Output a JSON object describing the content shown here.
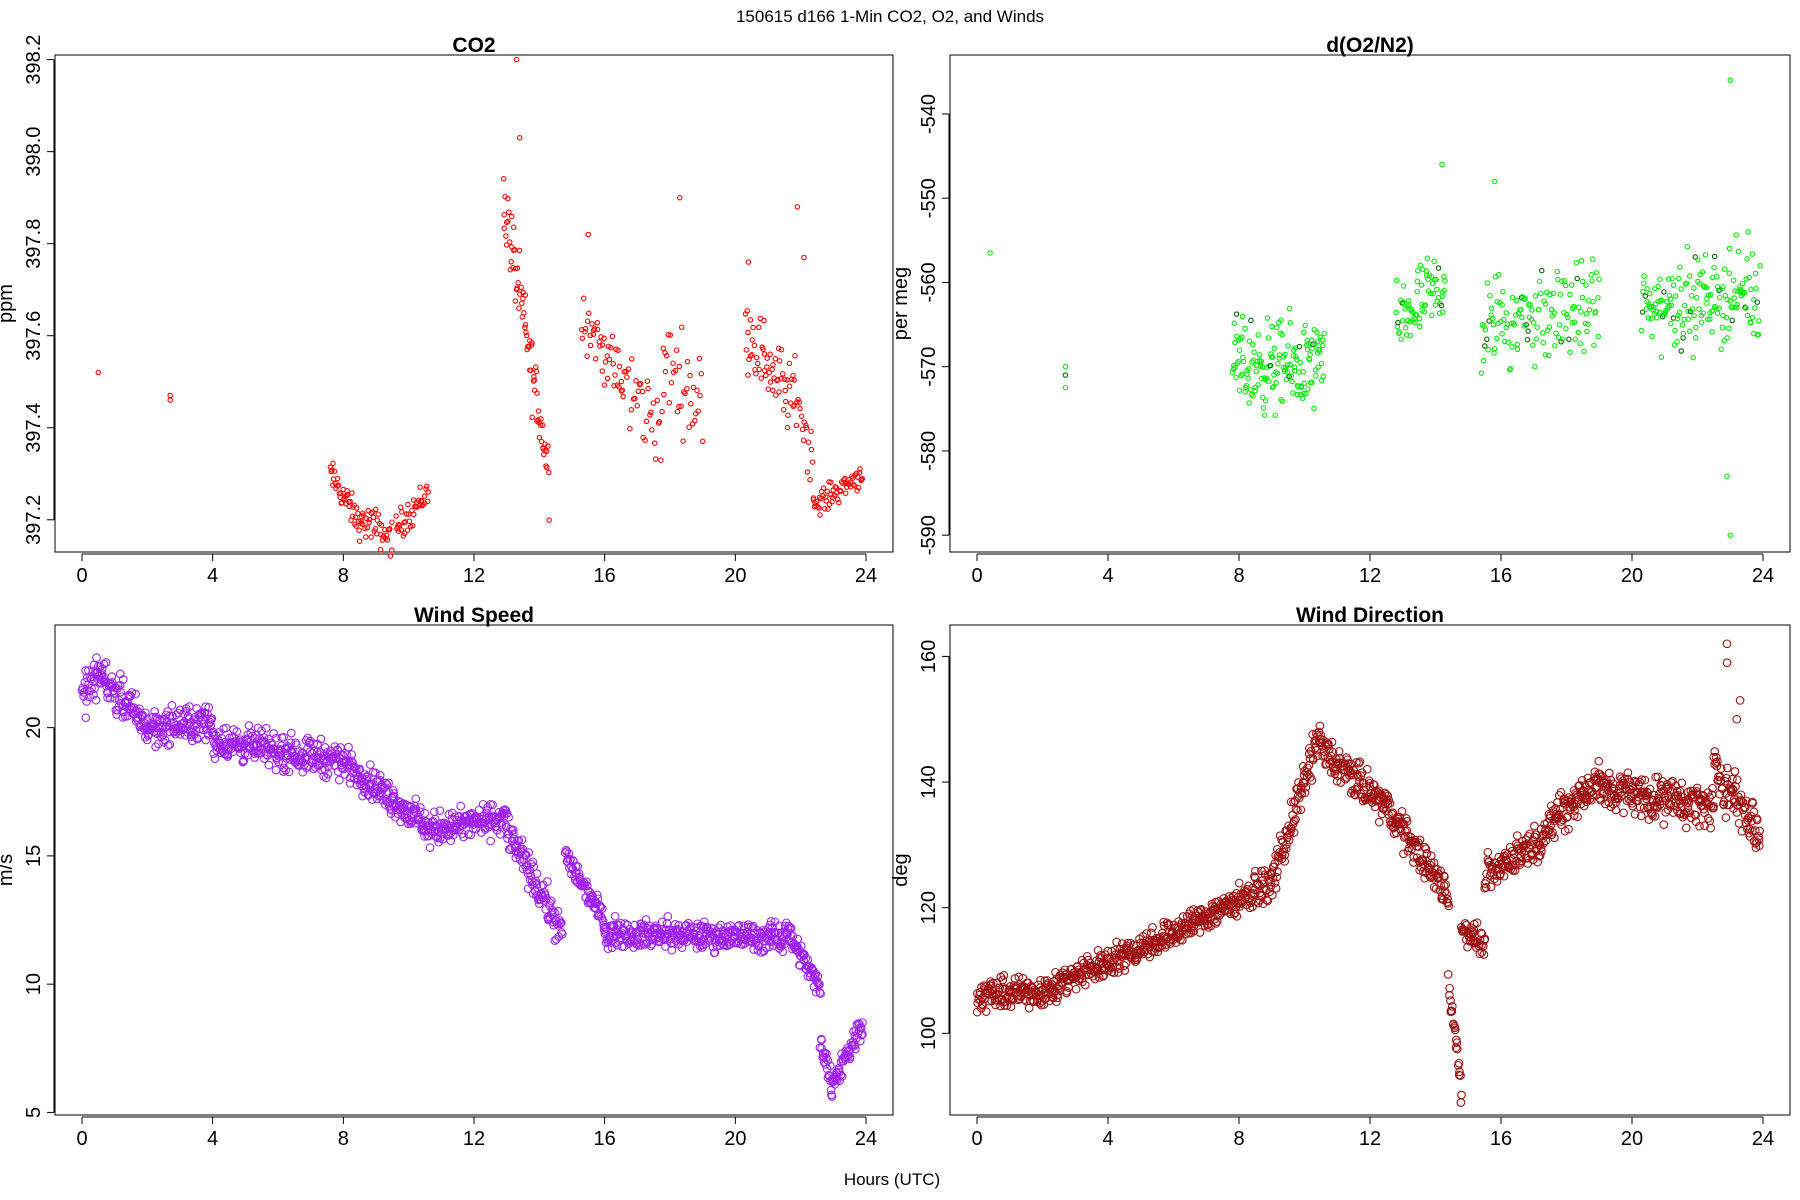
{
  "figure": {
    "title": "150615   d166   1-Min CO2, O2, and Winds",
    "xlabel": "Hours (UTC)"
  },
  "chart_data": [
    {
      "id": "co2",
      "type": "scatter",
      "title": "CO2",
      "xlabel": "",
      "ylabel": "ppm",
      "xlim": [
        0,
        24
      ],
      "ylim": [
        397.13,
        398.21
      ],
      "xticks": [
        0,
        4,
        8,
        12,
        16,
        20,
        24
      ],
      "yticks": [
        397.2,
        397.4,
        397.6,
        397.8,
        398.0,
        398.2
      ],
      "ytick_labels": [
        "397.2",
        "397.4",
        "397.6",
        "397.8",
        "398.0",
        "398.2"
      ],
      "color": "#ff0000",
      "marker_radius": 2.2,
      "series": [
        {
          "name": "CO2",
          "segments": [
            {
              "x": [
                0.5
              ],
              "y": [
                397.52
              ]
            },
            {
              "x": [
                2.7,
                2.7
              ],
              "y": [
                397.47,
                397.46
              ]
            },
            {
              "x0": 7.6,
              "x1": 8.6,
              "y0": 397.3,
              "y1": 397.18,
              "count": 45,
              "spread": 0.05
            },
            {
              "x0": 8.6,
              "x1": 9.5,
              "y0": 397.2,
              "y1": 397.16,
              "count": 35,
              "spread": 0.06
            },
            {
              "x0": 9.6,
              "x1": 10.6,
              "y0": 397.18,
              "y1": 397.26,
              "count": 40,
              "spread": 0.05
            },
            {
              "x0": 12.9,
              "x1": 14.3,
              "y0": 397.9,
              "y1": 397.3,
              "count": 75,
              "spread": 0.12
            },
            {
              "x0": 15.3,
              "x1": 16.5,
              "y0": 397.65,
              "y1": 397.5,
              "count": 40,
              "spread": 0.1
            },
            {
              "x0": 16.5,
              "x1": 17.8,
              "y0": 397.5,
              "y1": 397.4,
              "count": 35,
              "spread": 0.14
            },
            {
              "x0": 17.8,
              "x1": 19.0,
              "y0": 397.55,
              "y1": 397.45,
              "count": 35,
              "spread": 0.15
            },
            {
              "x0": 20.3,
              "x1": 21.8,
              "y0": 397.62,
              "y1": 397.45,
              "count": 60,
              "spread": 0.12
            },
            {
              "x0": 21.8,
              "x1": 22.4,
              "y0": 397.5,
              "y1": 397.32,
              "count": 20,
              "spread": 0.1
            },
            {
              "x0": 22.4,
              "x1": 23.9,
              "y0": 397.23,
              "y1": 397.3,
              "count": 60,
              "spread": 0.04
            },
            {
              "x": [
                13.3,
                18.3,
                21.9,
                13.4,
                15.5,
                20.4,
                22.1
              ],
              "y": [
                398.2,
                397.9,
                397.88,
                398.03,
                397.82,
                397.76,
                397.77
              ]
            }
          ]
        }
      ]
    },
    {
      "id": "o2",
      "type": "scatter",
      "title": "d(O2/N2)",
      "xlabel": "",
      "ylabel": "per meg",
      "xlim": [
        0,
        24
      ],
      "ylim": [
        -592,
        -533
      ],
      "xticks": [
        0,
        4,
        8,
        12,
        16,
        20,
        24
      ],
      "yticks": [
        -590,
        -580,
        -570,
        -560,
        -550,
        -540
      ],
      "ytick_labels": [
        "-590",
        "-580",
        "-570",
        "-560",
        "-550",
        "-540"
      ],
      "color": "#00ee00",
      "accent_color": "#006600",
      "marker_radius": 2.2,
      "series": [
        {
          "name": "d(O2/N2)",
          "segments": [
            {
              "x": [
                0.4
              ],
              "y": [
                -556.5
              ]
            },
            {
              "x": [
                2.7,
                2.7,
                2.7
              ],
              "y": [
                -570,
                -571,
                -572.5
              ]
            },
            {
              "x0": 7.8,
              "x1": 10.6,
              "y0": -570,
              "y1": -570,
              "count": 160,
              "spread": 8
            },
            {
              "x0": 12.8,
              "x1": 14.3,
              "y0": -565,
              "y1": -560,
              "count": 70,
              "spread": 7
            },
            {
              "x0": 15.4,
              "x1": 19.0,
              "y0": -565,
              "y1": -563,
              "count": 140,
              "spread": 8
            },
            {
              "x0": 20.3,
              "x1": 23.9,
              "y0": -563,
              "y1": -561,
              "count": 170,
              "spread": 8
            },
            {
              "x": [
                23.0,
                23.0,
                14.2,
                22.9,
                15.8
              ],
              "y": [
                -536,
                -590,
                -546,
                -583,
                -548
              ]
            }
          ]
        }
      ]
    },
    {
      "id": "wind_speed",
      "type": "scatter",
      "title": "Wind Speed",
      "xlabel": "",
      "ylabel": "m/s",
      "xlim": [
        0,
        24
      ],
      "ylim": [
        4.9,
        24.0
      ],
      "xticks": [
        0,
        4,
        8,
        12,
        16,
        20,
        24
      ],
      "yticks": [
        5,
        10,
        15,
        20
      ],
      "ytick_labels": [
        "5",
        "10",
        "15",
        "20"
      ],
      "color": "#a020f0",
      "marker_radius": 3.8,
      "series": [
        {
          "name": "Wind Speed",
          "segments": [
            {
              "x0": 0,
              "x1": 0.6,
              "y0": 21.2,
              "y1": 22.2,
              "count": 36,
              "spread": 1.2
            },
            {
              "x0": 0.6,
              "x1": 2.0,
              "y0": 22.0,
              "y1": 20.0,
              "count": 84,
              "spread": 1.1
            },
            {
              "x0": 2.0,
              "x1": 4.0,
              "y0": 20.0,
              "y1": 20.2,
              "count": 120,
              "spread": 1.0
            },
            {
              "x0": 4.0,
              "x1": 8.0,
              "y0": 19.5,
              "y1": 18.7,
              "count": 240,
              "spread": 1.0
            },
            {
              "x0": 8.0,
              "x1": 10.5,
              "y0": 18.7,
              "y1": 16.2,
              "count": 150,
              "spread": 0.9
            },
            {
              "x0": 10.5,
              "x1": 13.0,
              "y0": 16.0,
              "y1": 16.5,
              "count": 150,
              "spread": 0.9
            },
            {
              "x0": 13.0,
              "x1": 14.7,
              "y0": 16.0,
              "y1": 12.0,
              "count": 100,
              "spread": 1.0
            },
            {
              "x0": 14.8,
              "x1": 16.0,
              "y0": 15.0,
              "y1": 12.5,
              "count": 72,
              "spread": 0.7
            },
            {
              "x0": 16.0,
              "x1": 21.5,
              "y0": 12.0,
              "y1": 11.8,
              "count": 330,
              "spread": 0.8
            },
            {
              "x0": 21.5,
              "x1": 22.6,
              "y0": 12.3,
              "y1": 9.8,
              "count": 66,
              "spread": 0.7
            },
            {
              "x0": 22.6,
              "x1": 23.0,
              "y0": 8.0,
              "y1": 5.8,
              "count": 24,
              "spread": 0.8
            },
            {
              "x0": 23.0,
              "x1": 23.9,
              "y0": 6.2,
              "y1": 8.5,
              "count": 54,
              "spread": 0.8
            }
          ]
        }
      ]
    },
    {
      "id": "wind_direction",
      "type": "scatter",
      "title": "Wind Direction",
      "xlabel": "",
      "ylabel": "deg",
      "xlim": [
        0,
        24
      ],
      "ylim": [
        87,
        165
      ],
      "xticks": [
        0,
        4,
        8,
        12,
        16,
        20,
        24
      ],
      "yticks": [
        100,
        120,
        140,
        160
      ],
      "ytick_labels": [
        "100",
        "120",
        "140",
        "160"
      ],
      "color": "#a01010",
      "marker_radius": 3.8,
      "series": [
        {
          "name": "Wind Direction",
          "segments": [
            {
              "x0": 0,
              "x1": 2.5,
              "y0": 106,
              "y1": 107,
              "count": 150,
              "spread": 3.5
            },
            {
              "x0": 2.5,
              "x1": 6.0,
              "y0": 108,
              "y1": 116,
              "count": 210,
              "spread": 3.5
            },
            {
              "x0": 6.0,
              "x1": 9.0,
              "y0": 116,
              "y1": 124,
              "count": 180,
              "spread": 3.5
            },
            {
              "x0": 9.0,
              "x1": 10.5,
              "y0": 124,
              "y1": 148,
              "count": 90,
              "spread": 4.5
            },
            {
              "x0": 10.5,
              "x1": 12.5,
              "y0": 145,
              "y1": 136,
              "count": 120,
              "spread": 4.5
            },
            {
              "x0": 12.5,
              "x1": 14.4,
              "y0": 136,
              "y1": 122,
              "count": 114,
              "spread": 4
            },
            {
              "x0": 14.4,
              "x1": 14.8,
              "y0": 108,
              "y1": 91,
              "count": 24,
              "spread": 4
            },
            {
              "x0": 14.8,
              "x1": 15.5,
              "y0": 117,
              "y1": 114,
              "count": 42,
              "spread": 3
            },
            {
              "x0": 15.5,
              "x1": 17.5,
              "y0": 125,
              "y1": 132,
              "count": 120,
              "spread": 4
            },
            {
              "x0": 17.5,
              "x1": 19.0,
              "y0": 134,
              "y1": 140,
              "count": 90,
              "spread": 5
            },
            {
              "x0": 19.0,
              "x1": 22.5,
              "y0": 139,
              "y1": 136,
              "count": 210,
              "spread": 5
            },
            {
              "x0": 22.5,
              "x1": 23.9,
              "y0": 142,
              "y1": 132,
              "count": 84,
              "spread": 6
            },
            {
              "x": [
                22.9,
                22.9,
                23.3,
                23.2
              ],
              "y": [
                162,
                159,
                153,
                150
              ]
            }
          ]
        }
      ]
    }
  ]
}
